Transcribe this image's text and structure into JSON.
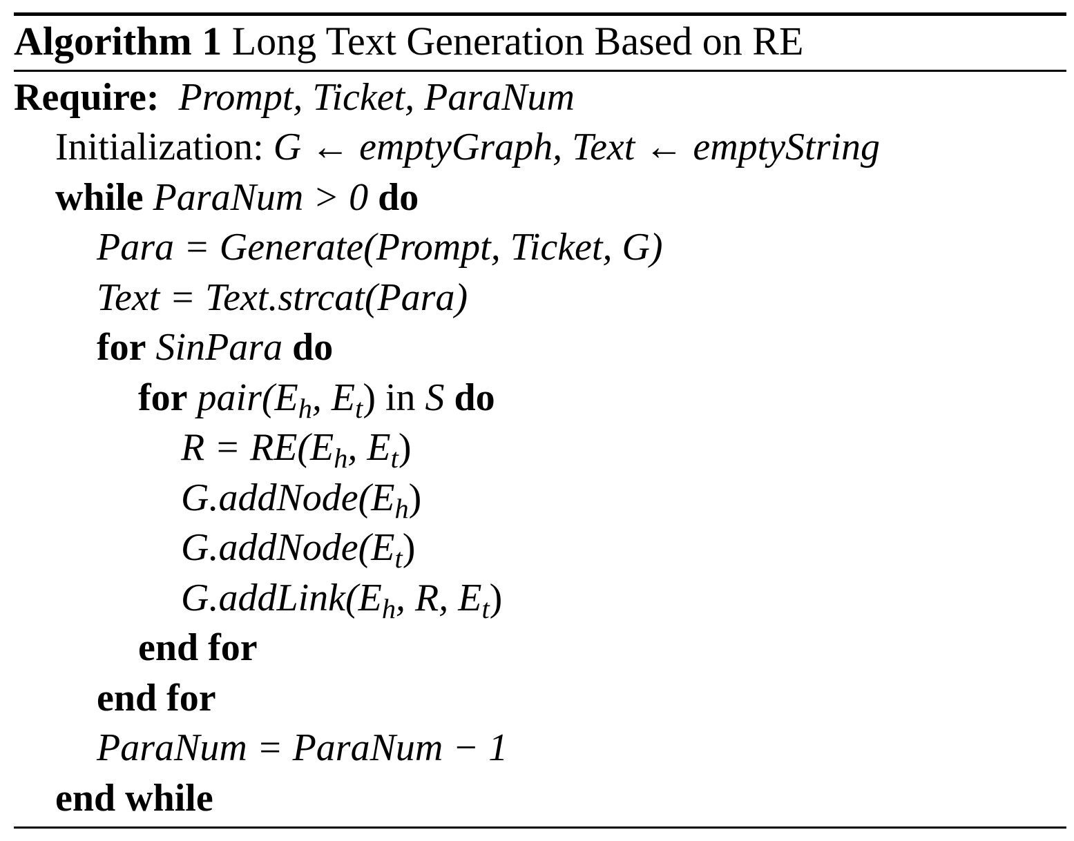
{
  "algorithm": {
    "label": "Algorithm 1",
    "title": "Long Text Generation Based on RE"
  },
  "require": {
    "keyword": "Require:",
    "inputs": "Prompt, Ticket, ParaNum"
  },
  "init": {
    "label": "Initialization:",
    "expr": "G ← emptyGraph, Text ← emptyString"
  },
  "while_loop": {
    "keyword": "while",
    "condition": "ParaNum > 0",
    "do": "do",
    "end": "end while"
  },
  "step_generate": "Para = Generate(Prompt, Ticket, G)",
  "step_strcat": "Text = Text.strcat(Para)",
  "outer_for": {
    "keyword": "for",
    "iter": "SinPara",
    "do": "do",
    "end": "end for"
  },
  "inner_for": {
    "keyword": "for",
    "iter_prefix": "pair(E",
    "iter_sub1": "h",
    "iter_mid": ", E",
    "iter_sub2": "t",
    "iter_close": ")",
    "in_kw": "in",
    "set": "S",
    "do": "do",
    "end": "end for"
  },
  "step_re": {
    "prefix": "R = RE(E",
    "sub1": "h",
    "mid": ", E",
    "sub2": "t",
    "close": ")"
  },
  "step_addnode_h": {
    "prefix": "G.addNode(E",
    "sub": "h",
    "close": ")"
  },
  "step_addnode_t": {
    "prefix": "G.addNode(E",
    "sub": "t",
    "close": ")"
  },
  "step_addlink": {
    "prefix": "G.addLink(E",
    "sub1": "h",
    "mid": ", R, E",
    "sub2": "t",
    "close": ")"
  },
  "step_decrement": "ParaNum = ParaNum − 1"
}
